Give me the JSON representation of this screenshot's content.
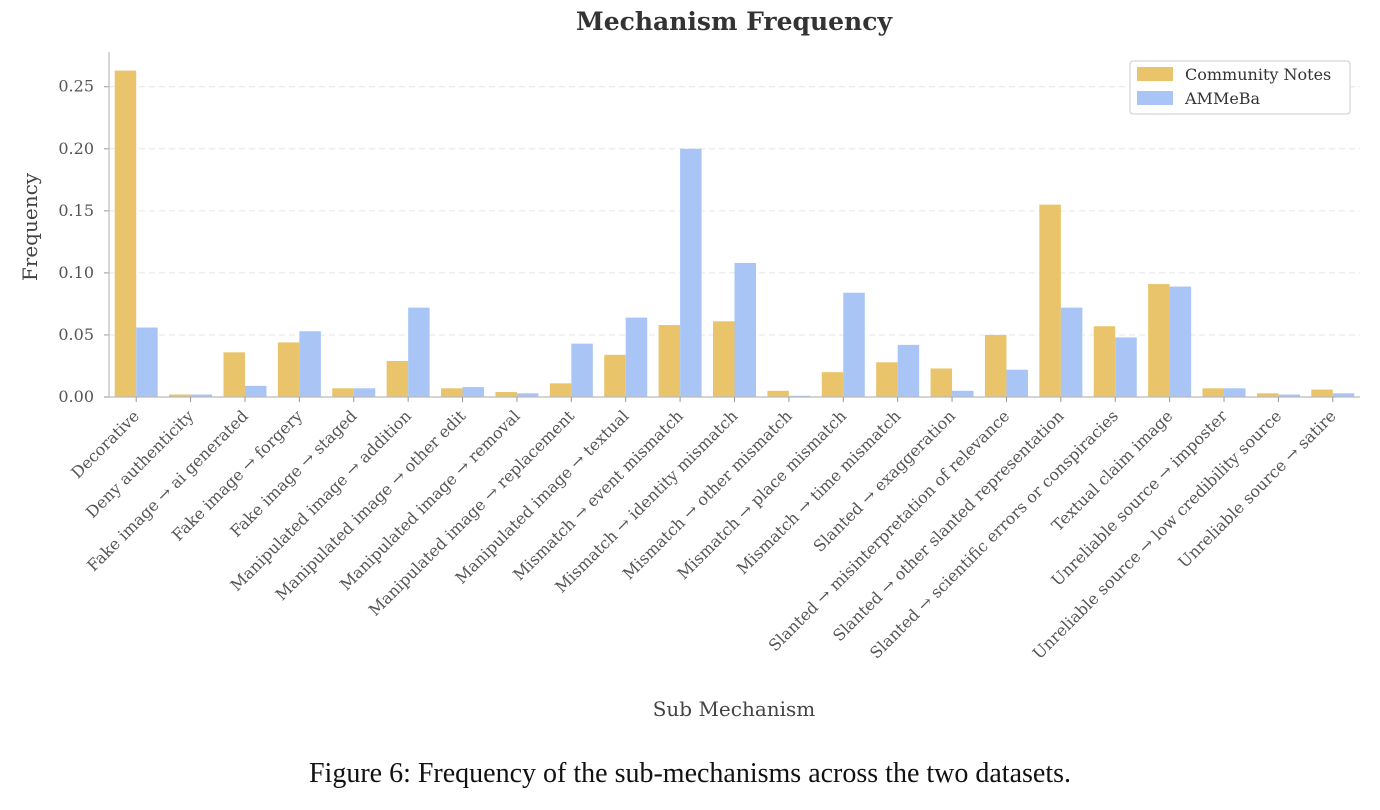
{
  "caption": "Figure 6: Frequency of the sub-mechanisms across the two datasets.",
  "chart_data": {
    "type": "bar",
    "title": "Mechanism Frequency",
    "xlabel": "Sub Mechanism",
    "ylabel": "Frequency",
    "ylim": [
      0,
      0.278
    ],
    "yticks": [
      "0.00",
      "0.05",
      "0.10",
      "0.15",
      "0.20",
      "0.25"
    ],
    "grid": "horizontal dashed",
    "legend_position": "top-right",
    "categories": [
      "Decorative",
      "Deny authenticity",
      "Fake image → ai generated",
      "Fake image → forgery",
      "Fake image → staged",
      "Manipulated image → addition",
      "Manipulated image → other edit",
      "Manipulated image → removal",
      "Manipulated image → replacement",
      "Manipulated image → textual",
      "Mismatch → event mismatch",
      "Mismatch → identity mismatch",
      "Mismatch → other mismatch",
      "Mismatch → place mismatch",
      "Mismatch → time mismatch",
      "Slanted → exaggeration",
      "Slanted → misinterpretation of relevance",
      "Slanted → other slanted representation",
      "Slanted → scientific errors or conspiracies",
      "Textual claim image",
      "Unreliable source → imposter",
      "Unreliable source → low credibility source",
      "Unreliable source → satire"
    ],
    "series": [
      {
        "name": "Community Notes",
        "color": "#E9C46A",
        "values": [
          0.263,
          0.002,
          0.036,
          0.044,
          0.007,
          0.029,
          0.007,
          0.004,
          0.011,
          0.034,
          0.058,
          0.061,
          0.005,
          0.02,
          0.028,
          0.023,
          0.05,
          0.155,
          0.057,
          0.091,
          0.007,
          0.003,
          0.006
        ]
      },
      {
        "name": "AMMeBa",
        "color": "#A8C5F5",
        "values": [
          0.056,
          0.002,
          0.009,
          0.053,
          0.007,
          0.072,
          0.008,
          0.003,
          0.043,
          0.064,
          0.2,
          0.108,
          0.001,
          0.084,
          0.042,
          0.005,
          0.022,
          0.072,
          0.048,
          0.089,
          0.007,
          0.002,
          0.003
        ]
      }
    ]
  }
}
